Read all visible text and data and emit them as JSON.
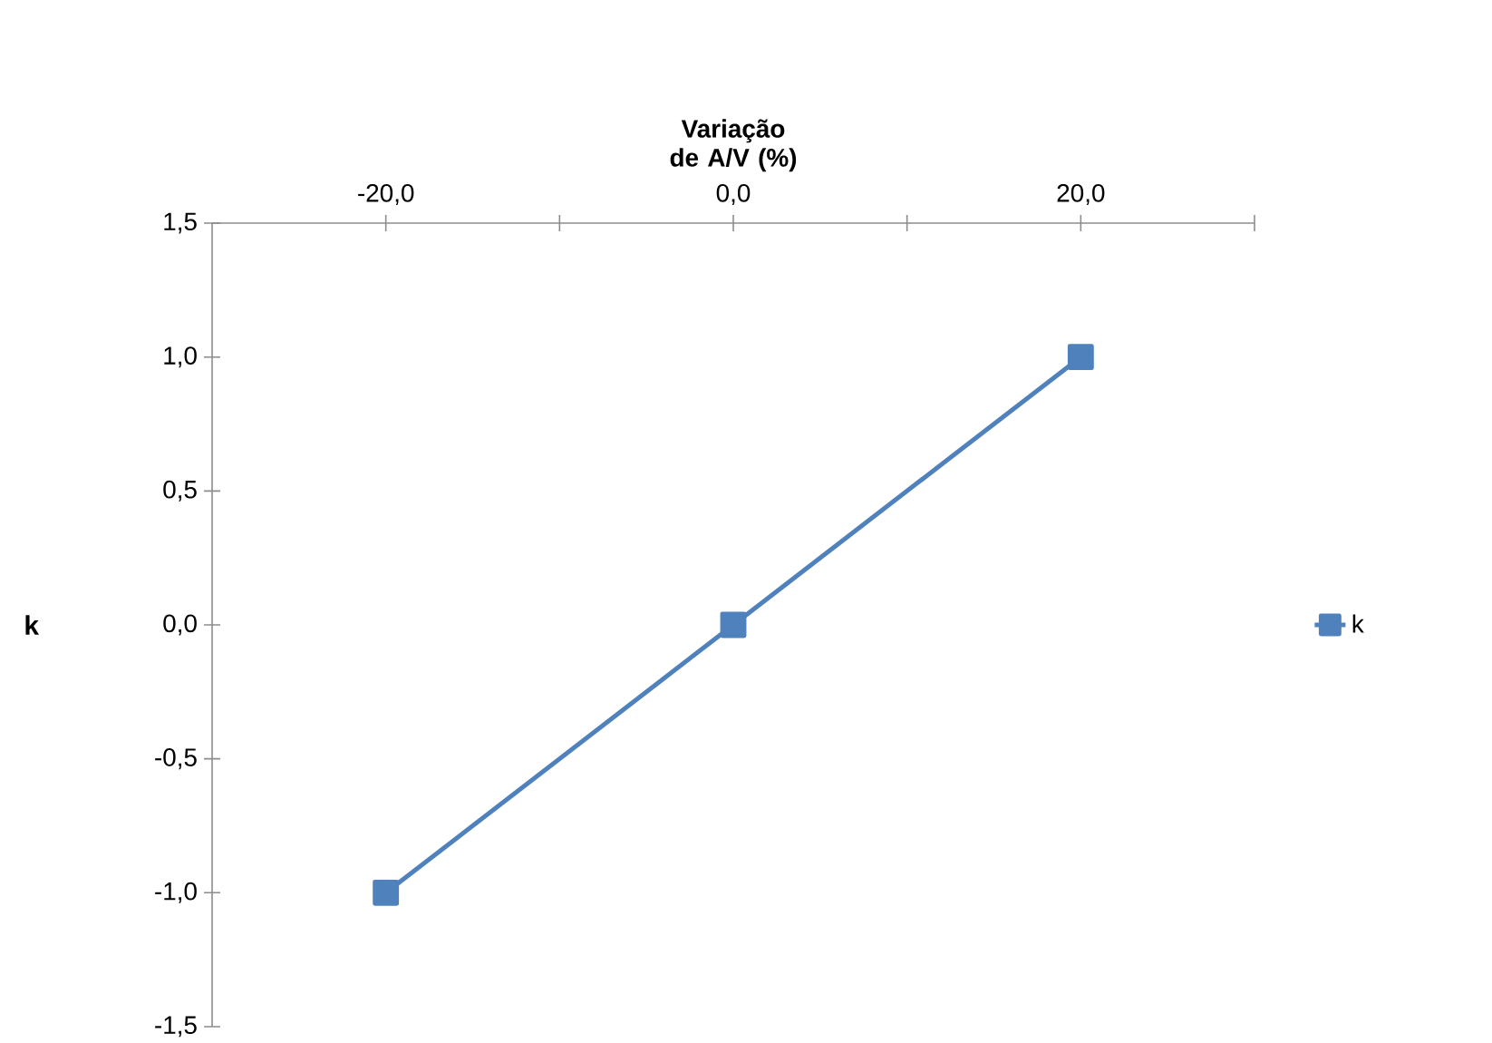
{
  "chart_data": {
    "type": "line",
    "xlabel": "Variação de A/V (%)",
    "ylabel": "k",
    "x": [
      -20,
      0,
      20
    ],
    "series": [
      {
        "name": "k",
        "color": "#4f81bd",
        "values": [
          -1,
          0,
          1
        ]
      }
    ],
    "xlim": [
      -30,
      30
    ],
    "xticks": [
      {
        "value": -20,
        "label": "-20,0"
      },
      {
        "value": -10,
        "label": null
      },
      {
        "value": 0,
        "label": "0,0"
      },
      {
        "value": 10,
        "label": null
      },
      {
        "value": 20,
        "label": "20,0"
      },
      {
        "value": 30,
        "label": null
      }
    ],
    "ylim": [
      -1.5,
      1.5
    ],
    "yticks": [
      {
        "value": -1.5,
        "label": "-1,5"
      },
      {
        "value": -1,
        "label": "-1,0"
      },
      {
        "value": -0.5,
        "label": "-0,5"
      },
      {
        "value": 0,
        "label": "0,0"
      },
      {
        "value": 0.5,
        "label": "0,5"
      },
      {
        "value": 1,
        "label": "1,0"
      },
      {
        "value": 1.5,
        "label": "1,5"
      }
    ],
    "grid": false,
    "legend": "right",
    "marker": "square",
    "line_style": "solid"
  }
}
